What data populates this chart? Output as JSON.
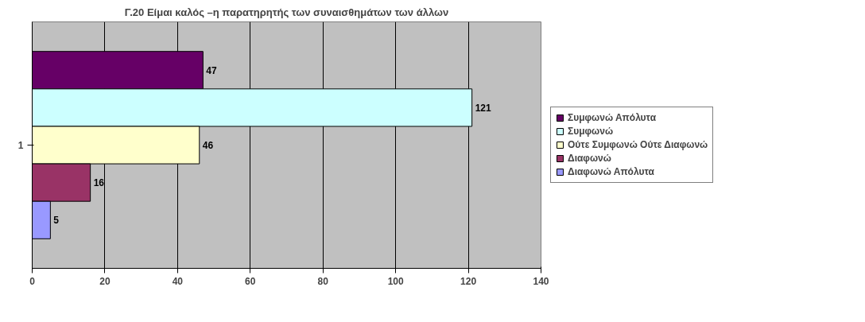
{
  "chart_data": {
    "type": "bar",
    "orientation": "horizontal",
    "title": "Γ.20 Είμαι καλός –η παρατηρητής των συναισθημάτων των άλλων",
    "categories": [
      "1"
    ],
    "series": [
      {
        "name": "Συμφωνώ Απόλυτα",
        "color": "#660066",
        "values": [
          47
        ]
      },
      {
        "name": "Συμφωνώ",
        "color": "#ccffff",
        "values": [
          121
        ]
      },
      {
        "name": "Ούτε Συμφωνώ Ούτε Διαφωνώ",
        "color": "#ffffcc",
        "values": [
          46
        ]
      },
      {
        "name": "Διαφωνώ",
        "color": "#993366",
        "values": [
          16
        ]
      },
      {
        "name": "Διαφωνώ Απόλυτα",
        "color": "#9999ff",
        "values": [
          5
        ]
      }
    ],
    "xlim": [
      0,
      140
    ],
    "xticks": [
      0,
      20,
      40,
      60,
      80,
      100,
      120,
      140
    ],
    "grid": "x",
    "legend": "right",
    "data_labels": true
  }
}
